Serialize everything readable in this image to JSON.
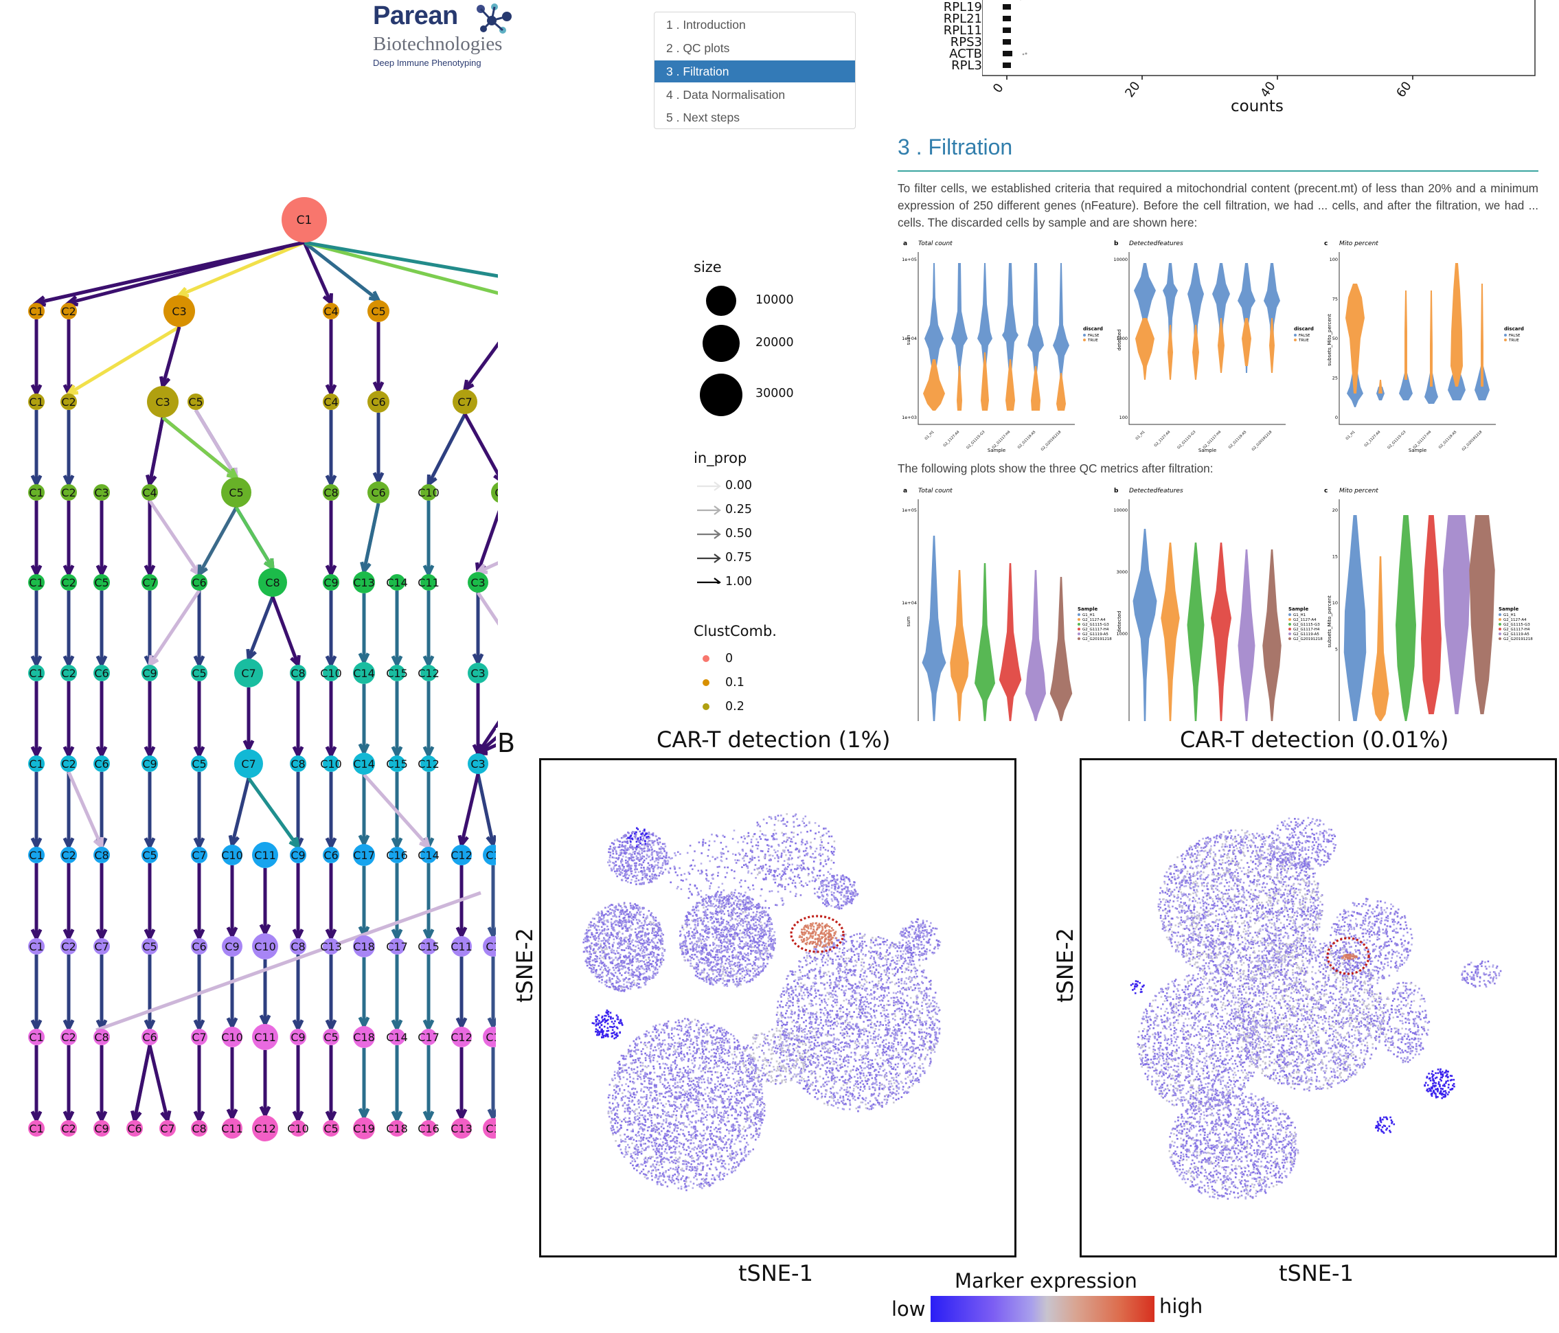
{
  "logo": {
    "name": "Parean",
    "subtitle": "Biotechnologies",
    "tagline": "Deep Immune Phenotyping"
  },
  "toc": {
    "items": [
      {
        "label": "1 . Introduction",
        "active": false
      },
      {
        "label": "2 . QC plots",
        "active": false
      },
      {
        "label": "3 . Filtration",
        "active": true
      },
      {
        "label": "4 . Data Normalisation",
        "active": false
      },
      {
        "label": "5 . Next steps",
        "active": false
      }
    ]
  },
  "counts_plot": {
    "genes": [
      "RPL19",
      "RPL21",
      "RPL11",
      "RPS3",
      "ACTB",
      "RPL3"
    ],
    "xticks": [
      "0",
      "20",
      "40",
      "60"
    ],
    "xlabel": "counts"
  },
  "report": {
    "section_title": "3 . Filtration",
    "paragraph": "To filter cells, we established criteria that required a mitochondrial content (precent.mt) of less than 20% and a minimum expression of 250 different genes (nFeature). Before the cell filtration, we had ... cells, and after the filtration, we had ... cells. The discarded cells by sample and are shown here:",
    "paragraph2": "The following plots show the three QC metrics after filtration:"
  },
  "qc_before": {
    "panels": [
      {
        "letter": "a",
        "title": "Total count",
        "ylabel": "sum",
        "yticks": [
          "1e+05",
          "1e+04",
          "1e+03"
        ]
      },
      {
        "letter": "b",
        "title": "Detectedfeatures",
        "ylabel": "detected",
        "yticks": [
          "10000",
          "1000",
          "100"
        ]
      },
      {
        "letter": "c",
        "title": "Mito percent",
        "ylabel": "subsets_Mito_percent",
        "yticks": [
          "100",
          "75",
          "50",
          "25",
          "0"
        ]
      }
    ],
    "xlabel": "Sample",
    "samples": [
      "G1_H1",
      "G2_1127-A4",
      "G2_G1115-G3",
      "G2_G1117-H4",
      "G2_G1119-A5",
      "G2_G20191218"
    ],
    "legend_title": "discard",
    "legend_items": [
      "FALSE",
      "TRUE"
    ],
    "colors": {
      "FALSE": "#6c98cf",
      "TRUE": "#f4a04a"
    }
  },
  "qc_after": {
    "panels": [
      {
        "letter": "a",
        "title": "Total count",
        "ylabel": "sum",
        "yticks": [
          "1e+05",
          "1e+04"
        ]
      },
      {
        "letter": "b",
        "title": "Detectedfeatures",
        "ylabel": "detected",
        "yticks": [
          "10000",
          "3000",
          "1000"
        ]
      },
      {
        "letter": "c",
        "title": "Mito percent",
        "ylabel": "subsets_Mito_percent",
        "yticks": [
          "20",
          "15",
          "10",
          "5"
        ]
      }
    ],
    "legend_title": "Sample",
    "samples": [
      "G1_H1",
      "G2_1127-A4",
      "G2_G1115-G3",
      "G2_G1117-H4",
      "G2_G1119-A5",
      "G2_G20191218"
    ],
    "colors": [
      "#6c98cf",
      "#f4a04a",
      "#58b854",
      "#e2504b",
      "#a98fcf",
      "#a8766a"
    ]
  },
  "clustree": {
    "legend": {
      "size_title": "size",
      "size_items": [
        "10000",
        "20000",
        "30000"
      ],
      "prop_title": "in_prop",
      "prop_items": [
        "0.00",
        "0.25",
        "0.50",
        "0.75",
        "1.00"
      ],
      "comb_title": "ClustComb.",
      "comb_items": [
        "0",
        "0.1",
        "0.2"
      ]
    },
    "row_colors": [
      "#f8766d",
      "#d89000",
      "#b0a010",
      "#68b228",
      "#1cbb4a",
      "#19bda0",
      "#12b8d5",
      "#16a4ee",
      "#a785f5",
      "#e96ae0",
      "#f25fc6"
    ]
  },
  "panel_b": {
    "letter": "B",
    "plots": [
      {
        "title": "CAR-T detection (1%)",
        "xlabel": "tSNE-1",
        "ylabel": "tSNE-2"
      },
      {
        "title": "CAR-T detection (0.01%)",
        "xlabel": "tSNE-1",
        "ylabel": "tSNE-2"
      }
    ],
    "colorbar_title": "Marker expression",
    "low_label": "low",
    "high_label": "high"
  }
}
